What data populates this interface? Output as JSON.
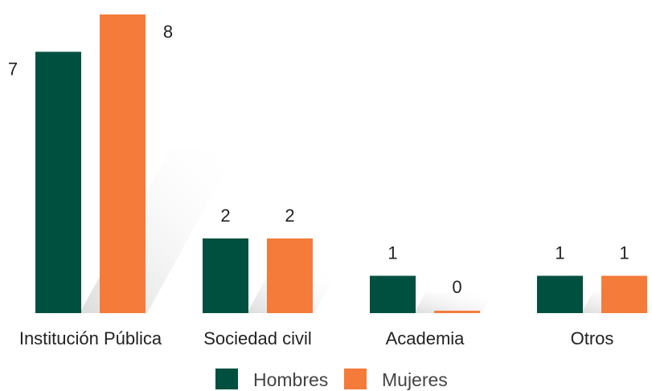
{
  "chart_data": {
    "type": "bar",
    "categories": [
      "Institución Pública",
      "Sociedad civil",
      "Academia",
      "Otros"
    ],
    "series": [
      {
        "name": "Hombres",
        "values": [
          7,
          2,
          1,
          1
        ],
        "color": "#00503F"
      },
      {
        "name": "Mujeres",
        "values": [
          8,
          2,
          0,
          1
        ],
        "color": "#F47B3A"
      }
    ],
    "ylim": [
      0,
      8
    ],
    "grid": false,
    "legend_position": "bottom-center",
    "data_labels": true
  }
}
